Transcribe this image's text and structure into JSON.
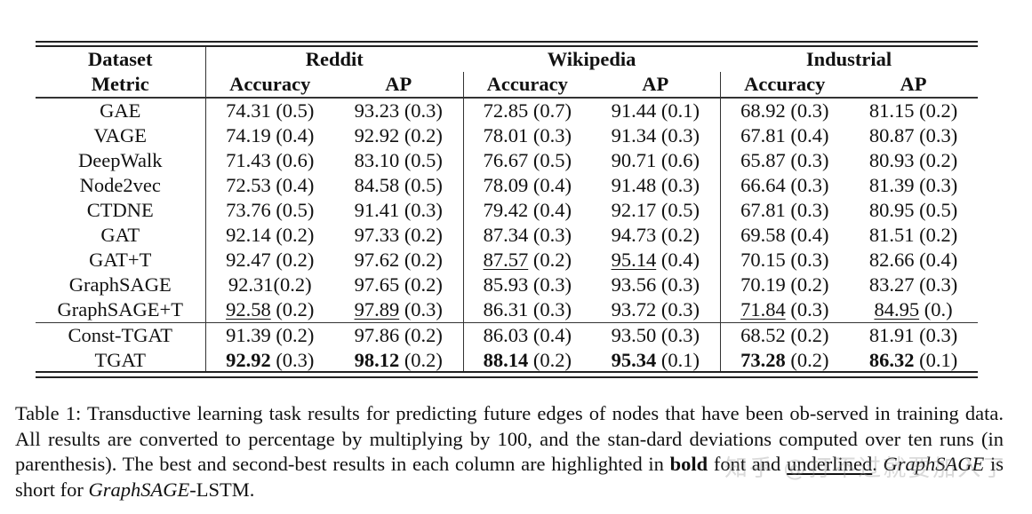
{
  "table": {
    "header": {
      "dataset_label": "Dataset",
      "metric_label": "Metric",
      "datasets": [
        "Reddit",
        "Wikipedia",
        "Industrial"
      ],
      "metrics": [
        "Accuracy",
        "AP",
        "Accuracy",
        "AP",
        "Accuracy",
        "AP"
      ]
    },
    "rows": [
      {
        "method": "GAE",
        "cells": [
          {
            "value": "74.31",
            "std": "(0.5)"
          },
          {
            "value": "93.23",
            "std": "(0.3)"
          },
          {
            "value": "72.85",
            "std": "(0.7)"
          },
          {
            "value": "91.44",
            "std": "(0.1)"
          },
          {
            "value": "68.92",
            "std": "(0.3)"
          },
          {
            "value": "81.15",
            "std": "(0.2)"
          }
        ]
      },
      {
        "method": "VAGE",
        "cells": [
          {
            "value": "74.19",
            "std": "(0.4)"
          },
          {
            "value": "92.92",
            "std": "(0.2)"
          },
          {
            "value": "78.01",
            "std": "(0.3)"
          },
          {
            "value": "91.34",
            "std": "(0.3)"
          },
          {
            "value": "67.81",
            "std": "(0.4)"
          },
          {
            "value": "80.87",
            "std": "(0.3)"
          }
        ]
      },
      {
        "method": "DeepWalk",
        "cells": [
          {
            "value": "71.43",
            "std": "(0.6)"
          },
          {
            "value": "83.10",
            "std": "(0.5)"
          },
          {
            "value": "76.67",
            "std": "(0.5)"
          },
          {
            "value": "90.71",
            "std": "(0.6)"
          },
          {
            "value": "65.87",
            "std": "(0.3)"
          },
          {
            "value": "80.93",
            "std": "(0.2)"
          }
        ]
      },
      {
        "method": "Node2vec",
        "cells": [
          {
            "value": "72.53",
            "std": "(0.4)"
          },
          {
            "value": "84.58",
            "std": "(0.5)"
          },
          {
            "value": "78.09",
            "std": "(0.4)"
          },
          {
            "value": "91.48",
            "std": "(0.3)"
          },
          {
            "value": "66.64",
            "std": "(0.3)"
          },
          {
            "value": "81.39",
            "std": "(0.3)"
          }
        ]
      },
      {
        "method": "CTDNE",
        "cells": [
          {
            "value": "73.76",
            "std": "(0.5)"
          },
          {
            "value": "91.41",
            "std": "(0.3)"
          },
          {
            "value": "79.42",
            "std": "(0.4)"
          },
          {
            "value": "92.17",
            "std": "(0.5)"
          },
          {
            "value": "67.81",
            "std": "(0.3)"
          },
          {
            "value": "80.95",
            "std": "(0.5)"
          }
        ]
      },
      {
        "method": "GAT",
        "cells": [
          {
            "value": "92.14",
            "std": "(0.2)"
          },
          {
            "value": "97.33",
            "std": "(0.2)"
          },
          {
            "value": "87.34",
            "std": "(0.3)"
          },
          {
            "value": "94.73",
            "std": "(0.2)"
          },
          {
            "value": "69.58",
            "std": "(0.4)"
          },
          {
            "value": "81.51",
            "std": "(0.2)"
          }
        ]
      },
      {
        "method": "GAT+T",
        "cells": [
          {
            "value": "92.47",
            "std": "(0.2)"
          },
          {
            "value": "97.62",
            "std": "(0.2)"
          },
          {
            "value": "87.57",
            "std": "(0.2)",
            "style": "underline"
          },
          {
            "value": "95.14",
            "std": "(0.4)",
            "style": "underline"
          },
          {
            "value": "70.15",
            "std": "(0.3)"
          },
          {
            "value": "82.66",
            "std": "(0.4)"
          }
        ]
      },
      {
        "method": "GraphSAGE",
        "cells": [
          {
            "value": "92.31",
            "std": "(0.2)",
            "nospace": true
          },
          {
            "value": "97.65",
            "std": "(0.2)"
          },
          {
            "value": "85.93",
            "std": "(0.3)"
          },
          {
            "value": "93.56",
            "std": "(0.3)"
          },
          {
            "value": "70.19",
            "std": "(0.2)"
          },
          {
            "value": "83.27",
            "std": "(0.3)"
          }
        ]
      },
      {
        "method": "GraphSAGE+T",
        "cells": [
          {
            "value": "92.58",
            "std": "(0.2)",
            "style": "underline"
          },
          {
            "value": "97.89",
            "std": "(0.3)",
            "style": "underline"
          },
          {
            "value": "86.31",
            "std": "(0.3)"
          },
          {
            "value": "93.72",
            "std": "(0.3)"
          },
          {
            "value": "71.84",
            "std": "(0.3)",
            "style": "underline"
          },
          {
            "value": "84.95",
            "std": "(0.)",
            "style": "underline"
          }
        ]
      },
      {
        "method": "Const-TGAT",
        "cells": [
          {
            "value": "91.39",
            "std": "(0.2)"
          },
          {
            "value": "97.86",
            "std": "(0.2)"
          },
          {
            "value": "86.03",
            "std": "(0.4)"
          },
          {
            "value": "93.50",
            "std": "(0.3)"
          },
          {
            "value": "68.52",
            "std": "(0.2)"
          },
          {
            "value": "81.91",
            "std": "(0.3)"
          }
        ]
      },
      {
        "method": "TGAT",
        "cells": [
          {
            "value": "92.92",
            "std": "(0.3)",
            "style": "bold"
          },
          {
            "value": "98.12",
            "std": "(0.2)",
            "style": "bold"
          },
          {
            "value": "88.14",
            "std": "(0.2)",
            "style": "bold"
          },
          {
            "value": "95.34",
            "std": "(0.1)",
            "style": "bold"
          },
          {
            "value": "73.28",
            "std": "(0.2)",
            "style": "bold"
          },
          {
            "value": "86.32",
            "std": "(0.1)",
            "style": "bold"
          }
        ]
      }
    ]
  },
  "caption": {
    "t1": "Table 1: Transductive learning task results for predicting future edges of nodes that have been ob-served in training data. All results are converted to percentage by multiplying by 100, and the stan-dard deviations computed over ten runs (in parenthesis). The best and second-best results in each column are highlighted in ",
    "bold_word": "bold",
    "t2": " font and ",
    "underlined_word": "underlined",
    "t3": ". ",
    "italic1": "GraphSAGE",
    "t4": " is short for ",
    "italic2": "GraphSAGE",
    "t5": "-LSTM."
  },
  "watermark": "知乎 @打不过就要加入了"
}
